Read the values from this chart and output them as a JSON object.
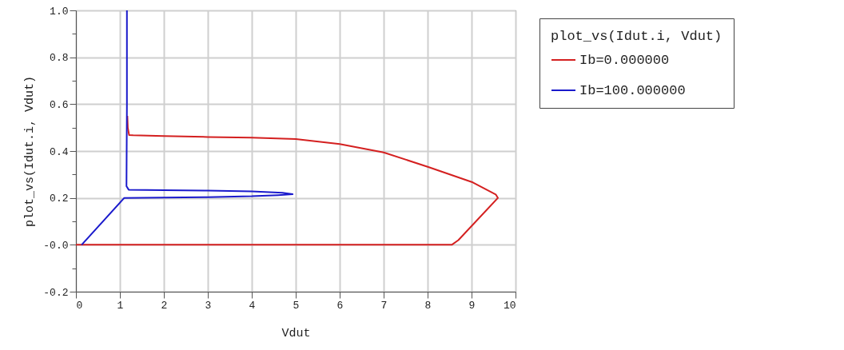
{
  "chart_data": {
    "type": "line",
    "xlabel": "Vdut",
    "ylabel": "plot_vs(Idut.i, Vdut)",
    "legend_title": "plot_vs(Idut.i, Vdut)",
    "legend": "top right",
    "grid": true,
    "marker": "none",
    "line_style": "solid",
    "xlim": [
      0,
      10
    ],
    "xticks": [
      0,
      1,
      2,
      3,
      4,
      5,
      6,
      7,
      8,
      9,
      10
    ],
    "ylim": [
      -0.2,
      1.0
    ],
    "yticks": [
      -0.2,
      {
        "value": -0.1,
        "label": null
      },
      {
        "value": 0,
        "label": "-0.0"
      },
      {
        "value": 0.1,
        "label": null
      },
      0.2,
      {
        "value": 0.3,
        "label": null
      },
      0.4,
      {
        "value": 0.5,
        "label": null
      },
      0.6,
      {
        "value": 0.7,
        "label": null
      },
      0.8,
      {
        "value": 0.9,
        "label": null
      },
      {
        "value": 1,
        "label": "1.0"
      }
    ],
    "series": [
      {
        "name": "Ib=0.000000",
        "color": "#d42020",
        "x": [
          0,
          8.55,
          8.7,
          9.6,
          9.55,
          9.03,
          8.03,
          7,
          6,
          5,
          4,
          3,
          2,
          1.3,
          1.21,
          1.18,
          1.17
        ],
        "values": [
          0,
          0,
          0.02,
          0.2,
          0.215,
          0.266,
          0.331,
          0.394,
          0.43,
          0.451,
          0.457,
          0.46,
          0.464,
          0.467,
          0.468,
          0.5,
          0.55
        ]
      },
      {
        "name": "Ib=100.000000",
        "color": "#1a1acc",
        "x": [
          0.13,
          1.1,
          2,
          3,
          4,
          4.6,
          4.93,
          4.7,
          4,
          3,
          2,
          1.2,
          1.15,
          1.16,
          1.16
        ],
        "values": [
          0,
          0.2,
          0.201,
          0.203,
          0.207,
          0.212,
          0.216,
          0.222,
          0.228,
          0.231,
          0.233,
          0.235,
          0.25,
          0.6,
          1.0
        ]
      }
    ]
  }
}
